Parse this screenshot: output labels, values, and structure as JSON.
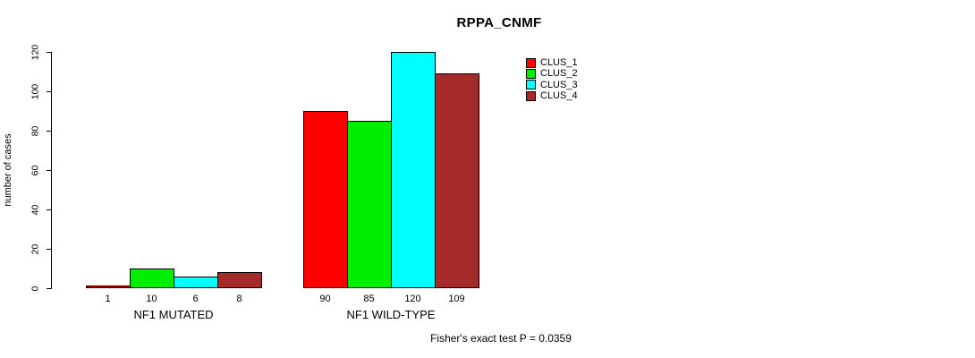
{
  "title": "RPPA_CNMF",
  "footer": "Fisher's exact test P = 0.0359",
  "chart_data": {
    "type": "bar",
    "title": "RPPA_CNMF",
    "xlabel": "",
    "ylabel": "number of cases",
    "ylim": [
      0,
      120
    ],
    "yticks": [
      0,
      20,
      40,
      60,
      80,
      100,
      120
    ],
    "grid": false,
    "legend_position": "top-right",
    "categories": [
      "NF1 MUTATED",
      "NF1 WILD-TYPE"
    ],
    "series": [
      {
        "name": "CLUS_1",
        "color": "#ff0000",
        "values": [
          1,
          90
        ]
      },
      {
        "name": "CLUS_2",
        "color": "#00ee00",
        "values": [
          10,
          85
        ]
      },
      {
        "name": "CLUS_3",
        "color": "#00ffff",
        "values": [
          6,
          120
        ]
      },
      {
        "name": "CLUS_4",
        "color": "#a52a2a",
        "values": [
          8,
          109
        ]
      }
    ],
    "bar_value_labels": [
      [
        "1",
        "10",
        "6",
        "8"
      ],
      [
        "90",
        "85",
        "120",
        "109"
      ]
    ],
    "annotation": "Fisher's exact test P = 0.0359"
  }
}
